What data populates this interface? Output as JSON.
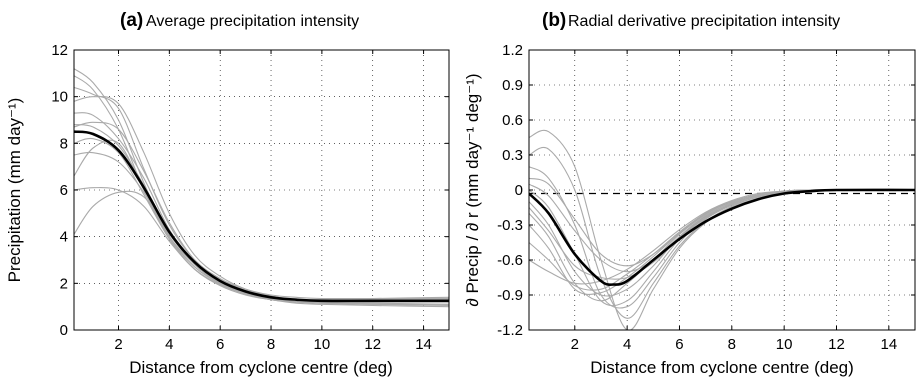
{
  "chart_data": [
    {
      "type": "line",
      "panel_label": "(a)",
      "title": "Average precipitation intensity",
      "xlabel": "Distance from cyclone centre (deg)",
      "ylabel": "Precipitation (mm day⁻¹)",
      "xlim": [
        0.25,
        15
      ],
      "ylim": [
        0,
        12
      ],
      "xticks": [
        2,
        4,
        6,
        8,
        10,
        12,
        14
      ],
      "yticks": [
        0,
        2,
        4,
        6,
        8,
        10,
        12
      ],
      "xtick_labels": [
        "2",
        "4",
        "6",
        "8",
        "10",
        "12",
        "14"
      ],
      "ytick_labels": [
        "0",
        "2",
        "4",
        "6",
        "8",
        "10",
        "12"
      ],
      "grid": true,
      "mean_curve": {
        "color": "#000000",
        "x": [
          0.25,
          1,
          2,
          3,
          4,
          5,
          6,
          7,
          8,
          9,
          10,
          12,
          15
        ],
        "y": [
          8.5,
          8.4,
          7.7,
          6.1,
          4.2,
          2.9,
          2.1,
          1.65,
          1.4,
          1.3,
          1.25,
          1.25,
          1.25
        ]
      },
      "individual_curves": {
        "color": "#aaaaaa",
        "x": [
          0.25,
          1,
          2,
          3,
          4,
          5,
          6,
          7,
          8,
          9,
          10,
          12,
          15
        ],
        "series": [
          [
            11.2,
            10.6,
            9.0,
            6.3,
            4.0,
            2.7,
            2.0,
            1.6,
            1.35,
            1.25,
            1.2,
            1.2,
            1.2
          ],
          [
            10.9,
            10.3,
            8.6,
            6.0,
            3.9,
            2.6,
            1.95,
            1.55,
            1.3,
            1.2,
            1.15,
            1.15,
            1.1
          ],
          [
            10.4,
            10.1,
            9.5,
            6.9,
            4.5,
            3.0,
            2.2,
            1.7,
            1.45,
            1.3,
            1.25,
            1.25,
            1.2
          ],
          [
            9.8,
            10.0,
            9.7,
            7.6,
            5.0,
            3.2,
            2.3,
            1.75,
            1.45,
            1.3,
            1.3,
            1.3,
            1.3
          ],
          [
            9.3,
            9.2,
            8.2,
            6.5,
            4.3,
            2.9,
            2.1,
            1.65,
            1.4,
            1.3,
            1.3,
            1.35,
            1.4
          ],
          [
            8.8,
            8.7,
            7.9,
            6.2,
            4.2,
            2.8,
            2.05,
            1.6,
            1.35,
            1.25,
            1.2,
            1.2,
            1.2
          ],
          [
            8.0,
            8.2,
            7.6,
            5.8,
            3.9,
            2.6,
            1.9,
            1.5,
            1.3,
            1.15,
            1.1,
            1.05,
            1.0
          ],
          [
            7.5,
            7.6,
            7.2,
            5.9,
            4.0,
            2.8,
            2.0,
            1.6,
            1.35,
            1.25,
            1.2,
            1.2,
            1.2
          ],
          [
            6.6,
            7.8,
            8.0,
            6.0,
            4.0,
            2.7,
            2.0,
            1.55,
            1.3,
            1.2,
            1.15,
            1.1,
            1.1
          ],
          [
            6.0,
            6.1,
            6.0,
            5.3,
            3.8,
            2.6,
            1.95,
            1.55,
            1.35,
            1.25,
            1.2,
            1.2,
            1.25
          ],
          [
            4.1,
            5.3,
            5.9,
            5.7,
            4.1,
            2.8,
            2.0,
            1.55,
            1.3,
            1.2,
            1.15,
            1.1,
            1.05
          ],
          [
            8.7,
            8.9,
            8.6,
            6.8,
            4.6,
            3.0,
            2.2,
            1.75,
            1.5,
            1.4,
            1.35,
            1.35,
            1.35
          ]
        ]
      }
    },
    {
      "type": "line",
      "panel_label": "(b)",
      "title": "Radial derivative precipitation intensity",
      "xlabel": "Distance from cyclone centre (deg)",
      "ylabel": "∂ Precip / ∂ r (mm day⁻¹ deg⁻¹)",
      "xlim": [
        0.25,
        15
      ],
      "ylim": [
        -1.2,
        1.2
      ],
      "xticks": [
        2,
        4,
        6,
        8,
        10,
        12,
        14
      ],
      "yticks": [
        -1.2,
        -0.9,
        -0.6,
        -0.3,
        0,
        0.3,
        0.6,
        0.9,
        1.2
      ],
      "xtick_labels": [
        "2",
        "4",
        "6",
        "8",
        "10",
        "12",
        "14"
      ],
      "ytick_labels": [
        "-1.2",
        "-0.9",
        "-0.6",
        "-0.3",
        "0",
        "0.3",
        "0.6",
        "0.9",
        "1.2"
      ],
      "grid": true,
      "reference_line": {
        "y": -0.03,
        "style": "dashed",
        "color": "#000000"
      },
      "mean_curve": {
        "color": "#000000",
        "x": [
          0.25,
          1,
          2,
          3,
          3.5,
          4,
          5,
          6,
          7,
          8,
          9,
          10,
          11,
          12,
          15
        ],
        "y": [
          -0.03,
          -0.2,
          -0.55,
          -0.78,
          -0.81,
          -0.78,
          -0.6,
          -0.42,
          -0.27,
          -0.16,
          -0.08,
          -0.03,
          -0.01,
          0,
          0
        ]
      },
      "individual_curves": {
        "color": "#aaaaaa",
        "x": [
          0.25,
          1,
          2,
          3,
          4,
          5,
          6,
          7,
          8,
          9,
          10,
          11,
          12,
          15
        ],
        "series": [
          [
            0.45,
            0.5,
            0.2,
            -0.6,
            -1.2,
            -0.85,
            -0.5,
            -0.28,
            -0.15,
            -0.07,
            -0.02,
            0,
            0,
            0
          ],
          [
            0.3,
            0.35,
            0.0,
            -0.75,
            -1.1,
            -0.8,
            -0.48,
            -0.27,
            -0.14,
            -0.06,
            -0.02,
            0,
            0,
            0
          ],
          [
            0.2,
            0.1,
            -0.3,
            -0.9,
            -1.0,
            -0.75,
            -0.45,
            -0.25,
            -0.13,
            -0.06,
            -0.02,
            0,
            0,
            0
          ],
          [
            0.0,
            -0.15,
            -0.55,
            -0.95,
            -0.95,
            -0.7,
            -0.42,
            -0.24,
            -0.12,
            -0.05,
            -0.01,
            0,
            0,
            0
          ],
          [
            -0.1,
            -0.3,
            -0.7,
            -0.9,
            -0.85,
            -0.65,
            -0.4,
            -0.22,
            -0.11,
            -0.05,
            -0.01,
            0,
            0,
            0
          ],
          [
            -0.2,
            -0.4,
            -0.8,
            -0.95,
            -0.8,
            -0.6,
            -0.38,
            -0.21,
            -0.1,
            -0.04,
            -0.01,
            0,
            0,
            0
          ],
          [
            -0.3,
            -0.5,
            -0.85,
            -0.88,
            -0.75,
            -0.57,
            -0.37,
            -0.2,
            -0.1,
            -0.04,
            -0.01,
            0,
            0,
            0
          ],
          [
            -0.45,
            -0.6,
            -0.82,
            -0.85,
            -0.72,
            -0.55,
            -0.36,
            -0.2,
            -0.1,
            -0.04,
            -0.01,
            0,
            0,
            0
          ],
          [
            -0.6,
            -0.7,
            -0.8,
            -0.78,
            -0.68,
            -0.52,
            -0.34,
            -0.19,
            -0.09,
            -0.03,
            -0.01,
            0,
            0,
            0
          ],
          [
            0.1,
            0.05,
            -0.25,
            -0.55,
            -0.65,
            -0.55,
            -0.36,
            -0.2,
            -0.1,
            -0.04,
            -0.01,
            0,
            0,
            0
          ],
          [
            0.05,
            -0.05,
            -0.35,
            -0.6,
            -0.7,
            -0.6,
            -0.4,
            -0.23,
            -0.12,
            -0.05,
            -0.02,
            0,
            0,
            0
          ],
          [
            -0.15,
            -0.35,
            -0.65,
            -0.75,
            -0.75,
            -0.62,
            -0.41,
            -0.23,
            -0.12,
            -0.05,
            -0.02,
            0,
            0,
            0
          ]
        ]
      }
    }
  ]
}
